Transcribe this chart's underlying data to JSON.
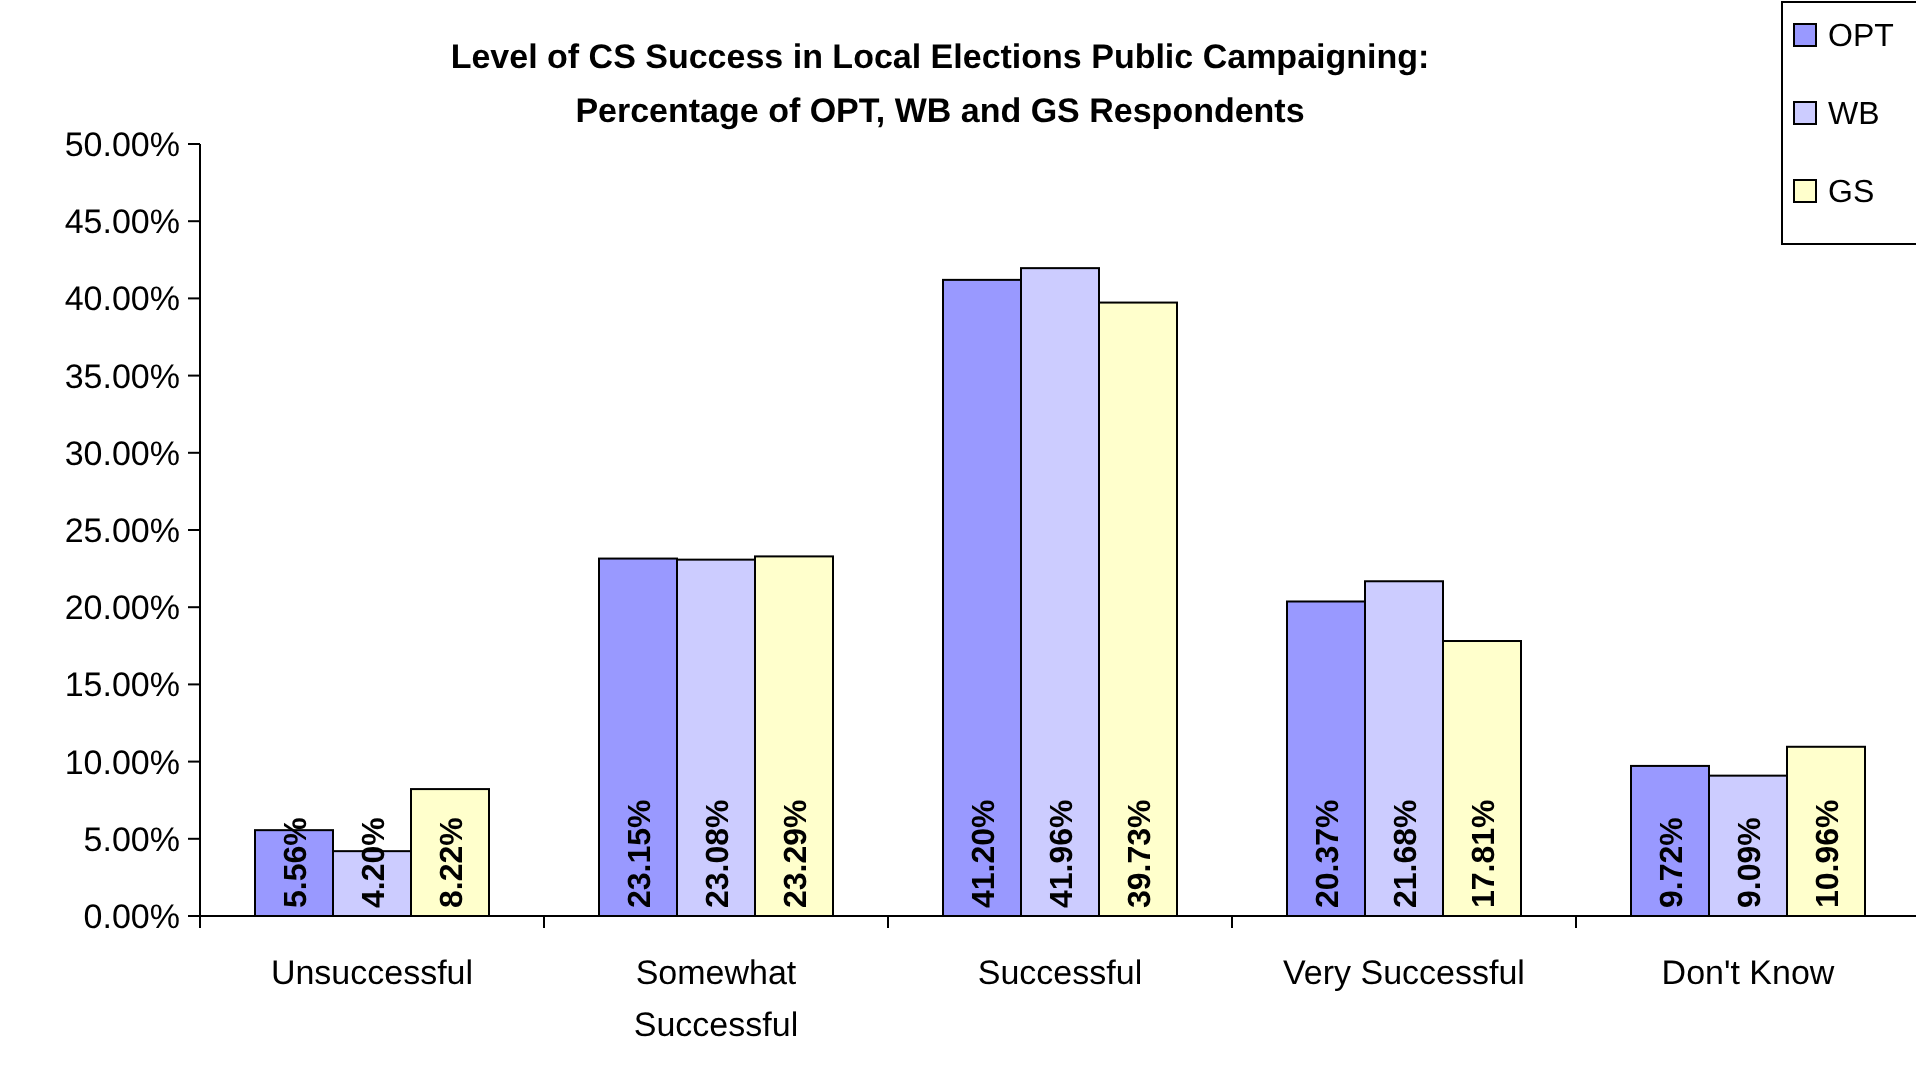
{
  "chart_data": {
    "type": "bar",
    "title": "Level of CS Success in Local Elections Public Campaigning:\nPercentage of OPT, WB and GS Respondents",
    "categories": [
      "Unsuccessful",
      "Somewhat Successful",
      "Successful",
      "Very Successful",
      "Don't Know"
    ],
    "series": [
      {
        "name": "OPT",
        "color": "#9999ff",
        "values": [
          5.56,
          23.15,
          41.2,
          20.37,
          9.72
        ],
        "value_labels": [
          "5.56%",
          "23.15%",
          "41.20%",
          "20.37%",
          "9.72%"
        ]
      },
      {
        "name": "WB",
        "color": "#ccccff",
        "values": [
          4.2,
          23.08,
          41.96,
          21.68,
          9.09
        ],
        "value_labels": [
          "4.20%",
          "23.08%",
          "41.96%",
          "21.68%",
          "9.09%"
        ]
      },
      {
        "name": "GS",
        "color": "#ffffcc",
        "values": [
          8.22,
          23.29,
          39.73,
          17.81,
          10.96
        ],
        "value_labels": [
          "8.22%",
          "23.29%",
          "39.73%",
          "17.81%",
          "10.96%"
        ]
      }
    ],
    "ylim": [
      0,
      50
    ],
    "yticks": [
      {
        "value": 0,
        "label": "0.00%"
      },
      {
        "value": 5,
        "label": "5.00%"
      },
      {
        "value": 10,
        "label": "10.00%"
      },
      {
        "value": 15,
        "label": "15.00%"
      },
      {
        "value": 20,
        "label": "20.00%"
      },
      {
        "value": 25,
        "label": "25.00%"
      },
      {
        "value": 30,
        "label": "30.00%"
      },
      {
        "value": 35,
        "label": "35.00%"
      },
      {
        "value": 40,
        "label": "40.00%"
      },
      {
        "value": 45,
        "label": "45.00%"
      },
      {
        "value": 50,
        "label": "50.00%"
      }
    ],
    "legend": "top right"
  }
}
